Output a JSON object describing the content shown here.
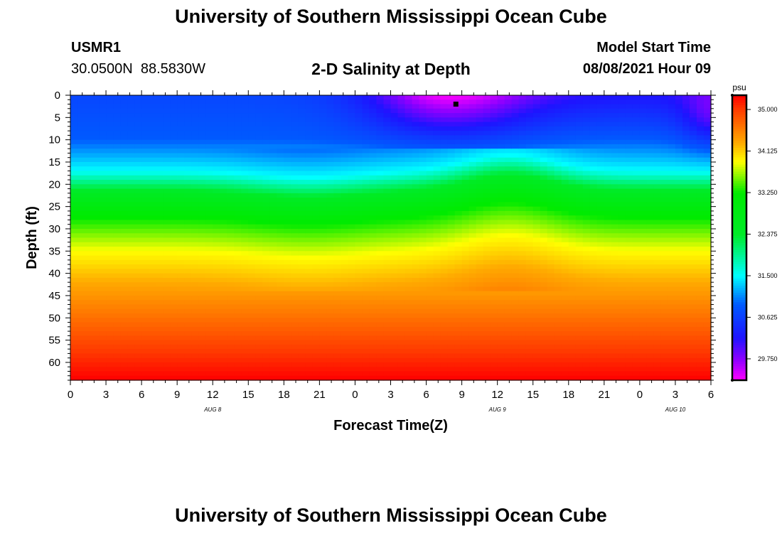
{
  "header": {
    "title": "University of Southern Mississippi Ocean Cube",
    "station_id": "USMR1",
    "coordinates": "30.0500N  88.5830W",
    "plot_title": "2-D Salinity at Depth",
    "model_start_label": "Model Start Time",
    "model_start_value": "08/08/2021 Hour 09"
  },
  "footer": {
    "title": "University of Southern Mississippi Ocean Cube"
  },
  "chart_data": {
    "type": "heatmap",
    "title": "2-D Salinity at Depth",
    "xlabel": "Forecast Time(Z)",
    "ylabel": "Depth (ft)",
    "x_tick_labels": [
      "0",
      "3",
      "6",
      "9",
      "12",
      "15",
      "18",
      "21",
      "0",
      "3",
      "6",
      "9",
      "12",
      "15",
      "18",
      "21",
      "0",
      "3",
      "6"
    ],
    "x_tick_hours": [
      0,
      3,
      6,
      9,
      12,
      15,
      18,
      21,
      24,
      27,
      30,
      33,
      36,
      39,
      42,
      45,
      48,
      51,
      54
    ],
    "xlim": [
      0,
      54
    ],
    "date_labels": [
      {
        "text": "AUG 8",
        "hour": 12
      },
      {
        "text": "AUG 9",
        "hour": 36
      },
      {
        "text": "AUG 10",
        "hour": 51
      }
    ],
    "y_ticks": [
      0,
      5,
      10,
      15,
      20,
      25,
      30,
      35,
      40,
      45,
      50,
      55,
      60
    ],
    "ylim": [
      0,
      64
    ],
    "y_inverted": true,
    "colorbar": {
      "unit": "psu",
      "min": 29.3,
      "max": 35.3,
      "tick_values": [
        35.0,
        34.125,
        33.25,
        32.375,
        31.5,
        30.625,
        29.75
      ],
      "tick_labels": [
        "35.000",
        "34.125",
        "33.250",
        "32.375",
        "31.500",
        "30.625",
        "29.750"
      ]
    },
    "marker": {
      "hour": 32.5,
      "depth": 2,
      "label": "model start time"
    },
    "sample_profiles": [
      {
        "hour": 0,
        "depth_salinity": [
          [
            0,
            30.7
          ],
          [
            10,
            30.9
          ],
          [
            17,
            31.5
          ],
          [
            22,
            32.5
          ],
          [
            27,
            33.2
          ],
          [
            35,
            33.9
          ],
          [
            42,
            34.3
          ],
          [
            55,
            34.9
          ],
          [
            64,
            35.3
          ]
        ]
      },
      {
        "hour": 32,
        "depth_salinity": [
          [
            0,
            29.3
          ],
          [
            5,
            29.9
          ],
          [
            10,
            30.6
          ],
          [
            17,
            31.5
          ],
          [
            22,
            32.6
          ],
          [
            28,
            33.3
          ],
          [
            36,
            33.9
          ],
          [
            45,
            34.3
          ],
          [
            55,
            34.9
          ],
          [
            64,
            35.3
          ]
        ]
      },
      {
        "hour": 54,
        "depth_salinity": [
          [
            0,
            30.2
          ],
          [
            10,
            30.9
          ],
          [
            18,
            31.6
          ],
          [
            22,
            32.6
          ],
          [
            27,
            33.2
          ],
          [
            35,
            33.9
          ],
          [
            45,
            34.3
          ],
          [
            55,
            34.9
          ],
          [
            64,
            35.3
          ]
        ]
      }
    ]
  }
}
